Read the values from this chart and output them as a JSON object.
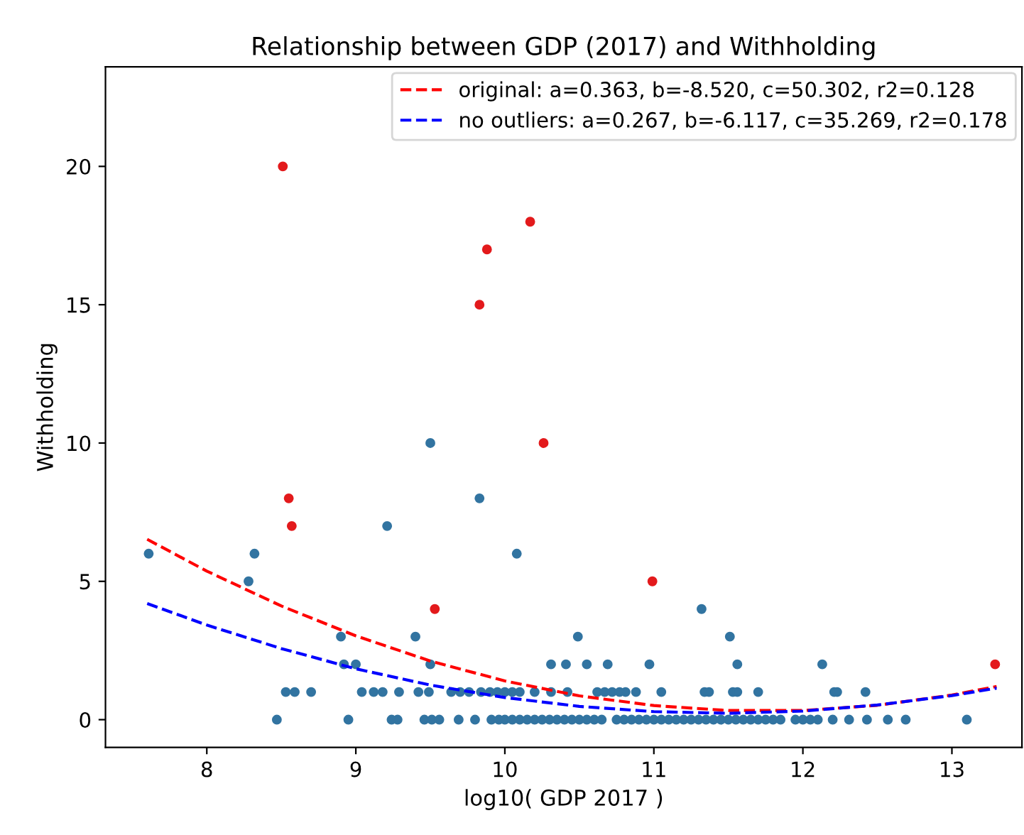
{
  "chart_data": {
    "type": "scatter",
    "title": "Relationship between GDP (2017) and Withholding",
    "xlabel": "log10( GDP 2017 )",
    "ylabel": "Withholding",
    "xlim": [
      7.32,
      13.47
    ],
    "ylim": [
      -1,
      23.6
    ],
    "xticks": [
      8,
      9,
      10,
      11,
      12,
      13
    ],
    "yticks": [
      0,
      5,
      10,
      15,
      20
    ],
    "grid": false,
    "legend": "top right",
    "marker": "circle",
    "series": [
      {
        "color": "#3274a1",
        "x": [
          7.61,
          8.32,
          10.08,
          9.21,
          8.28,
          9.5,
          9.83,
          11.32,
          8.9,
          9.4,
          10.49,
          11.51,
          8.92,
          9.0,
          9.5,
          10.31,
          10.41,
          10.55,
          10.69,
          10.97,
          11.56,
          12.13,
          8.53,
          8.59,
          8.7,
          9.04,
          9.12,
          9.18,
          9.29,
          9.42,
          9.49,
          9.64,
          9.7,
          9.76,
          9.84,
          9.9,
          9.95,
          10.0,
          10.05,
          10.1,
          10.2,
          10.31,
          10.42,
          10.62,
          10.67,
          10.72,
          10.77,
          10.81,
          10.88,
          11.05,
          11.34,
          11.37,
          11.53,
          11.56,
          11.7,
          12.21,
          12.23,
          12.42,
          8.47,
          8.95,
          9.24,
          9.28,
          9.46,
          9.51,
          9.56,
          9.69,
          9.8,
          9.91,
          9.96,
          10.0,
          10.05,
          10.1,
          10.15,
          10.2,
          10.25,
          10.3,
          10.35,
          10.4,
          10.45,
          10.5,
          10.55,
          10.6,
          10.65,
          10.75,
          10.8,
          10.85,
          10.9,
          10.95,
          11.0,
          11.05,
          11.1,
          11.15,
          11.2,
          11.25,
          11.3,
          11.35,
          11.4,
          11.45,
          11.5,
          11.55,
          11.6,
          11.65,
          11.7,
          11.75,
          11.8,
          11.85,
          11.95,
          12.0,
          12.05,
          12.1,
          12.2,
          12.31,
          12.43,
          12.57,
          12.69,
          13.1
        ],
        "values": [
          6,
          6,
          6,
          7,
          5,
          10,
          8,
          4,
          3,
          3,
          3,
          3,
          2,
          2,
          2,
          2,
          2,
          2,
          2,
          2,
          2,
          2,
          1,
          1,
          1,
          1,
          1,
          1,
          1,
          1,
          1,
          1,
          1,
          1,
          1,
          1,
          1,
          1,
          1,
          1,
          1,
          1,
          1,
          1,
          1,
          1,
          1,
          1,
          1,
          1,
          1,
          1,
          1,
          1,
          1,
          1,
          1,
          1,
          0,
          0,
          0,
          0,
          0,
          0,
          0,
          0,
          0,
          0,
          0,
          0,
          0,
          0,
          0,
          0,
          0,
          0,
          0,
          0,
          0,
          0,
          0,
          0,
          0,
          0,
          0,
          0,
          0,
          0,
          0,
          0,
          0,
          0,
          0,
          0,
          0,
          0,
          0,
          0,
          0,
          0,
          0,
          0,
          0,
          0,
          0,
          0,
          0,
          0,
          0,
          0,
          0,
          0,
          0,
          0,
          0,
          0
        ]
      },
      {
        "color": "#e31a1c",
        "x": [
          8.51,
          9.88,
          9.83,
          10.17,
          10.26,
          8.55,
          8.57,
          9.53,
          10.99,
          13.29
        ],
        "values": [
          20,
          17,
          15,
          18,
          10,
          8,
          7,
          4,
          5,
          2
        ]
      },
      {
        "type": "line",
        "name": "original: a=0.363, b=-8.520, c=50.302, r2=0.128",
        "color": "#ff0000",
        "line_style": "dashed",
        "marker": "none",
        "x": [
          7.6,
          8,
          8.5,
          9,
          9.5,
          10,
          10.5,
          11,
          11.5,
          12,
          12.5,
          13,
          13.3
        ],
        "values": [
          6.52,
          5.37,
          4.11,
          3.03,
          2.12,
          1.4,
          0.86,
          0.51,
          0.33,
          0.33,
          0.52,
          0.89,
          1.2
        ]
      },
      {
        "type": "line",
        "name": "no outliers: a=0.267, b=-6.117, c=35.269, r2=0.178",
        "color": "#0000ff",
        "line_style": "dashed",
        "marker": "none",
        "x": [
          7.6,
          8,
          8.5,
          9,
          9.5,
          10,
          10.5,
          11,
          11.5,
          12,
          12.5,
          13,
          13.3
        ],
        "values": [
          4.2,
          3.42,
          2.57,
          1.84,
          1.25,
          0.8,
          0.48,
          0.29,
          0.23,
          0.31,
          0.53,
          0.87,
          1.14
        ]
      }
    ]
  }
}
